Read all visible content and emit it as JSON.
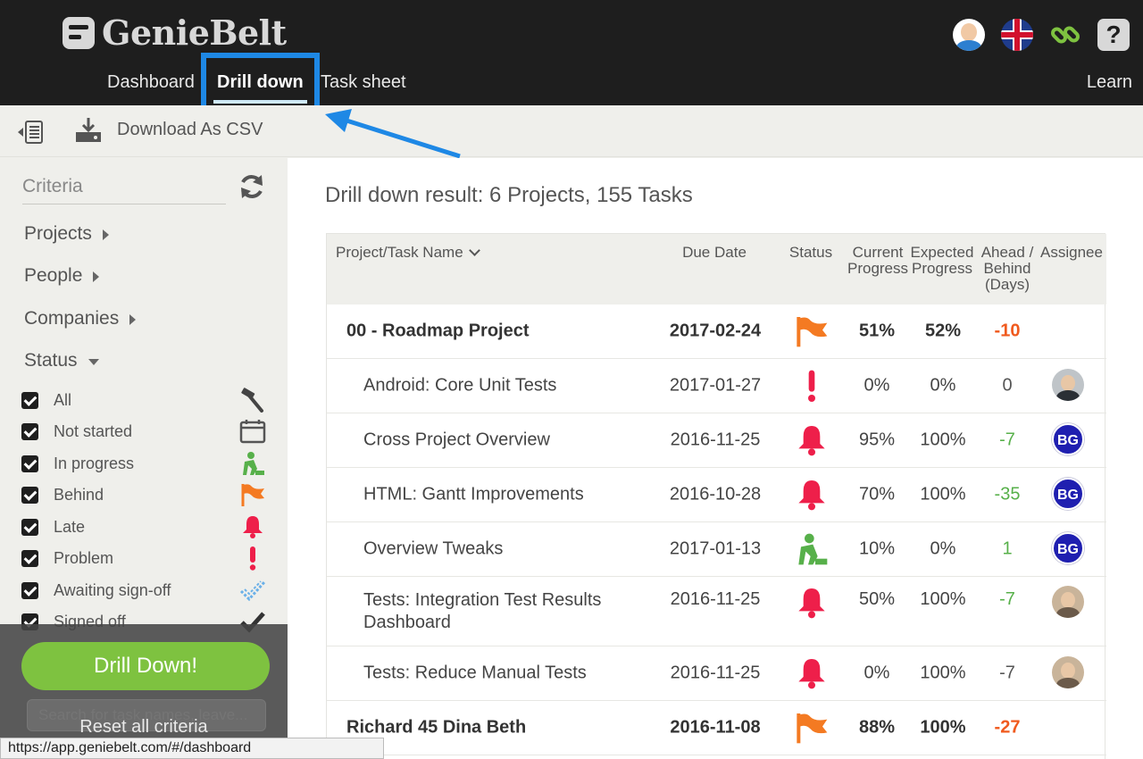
{
  "app": {
    "logo_text": "GenieBelt",
    "nav": {
      "dashboard": "Dashboard",
      "drill_down": "Drill down",
      "task_sheet": "Task sheet",
      "learn": "Learn"
    },
    "icons": [
      "user-avatar-icon",
      "uk-flag-icon",
      "link-icon",
      "help-icon"
    ],
    "accent_color": "#1e88e5",
    "action_color": "#7ec240"
  },
  "toolbar": {
    "download_label": "Download As CSV"
  },
  "sidebar": {
    "criteria_placeholder": "Criteria",
    "filters": {
      "projects": "Projects",
      "people": "People",
      "companies": "Companies",
      "status": "Status"
    },
    "statuses": [
      {
        "label": "All",
        "icon": "hammer-icon",
        "checked": true
      },
      {
        "label": "Not started",
        "icon": "calendar-icon",
        "checked": true
      },
      {
        "label": "In progress",
        "icon": "worker-icon",
        "checked": true
      },
      {
        "label": "Behind",
        "icon": "flag-icon",
        "checked": true
      },
      {
        "label": "Late",
        "icon": "bell-icon",
        "checked": true
      },
      {
        "label": "Problem",
        "icon": "exclamation-icon",
        "checked": true
      },
      {
        "label": "Awaiting sign-off",
        "icon": "dashed-check-icon",
        "checked": true
      },
      {
        "label": "Signed off",
        "icon": "check-icon",
        "checked": true
      }
    ],
    "drill_button": "Drill Down!",
    "search_placeholder": "Search for task names, leave...",
    "reset_label": "Reset all criteria"
  },
  "browser": {
    "status_url": "https://app.geniebelt.com/#/dashboard"
  },
  "main": {
    "result_title": "Drill down result: 6 Projects, 155 Tasks",
    "columns": {
      "name": "Project/Task Name",
      "due": "Due Date",
      "status": "Status",
      "current_1": "Current",
      "current_2": "Progress",
      "expected_1": "Expected",
      "expected_2": "Progress",
      "ahead_1": "Ahead /",
      "ahead_2": "Behind",
      "ahead_3": "(Days)",
      "assignee": "Assignee"
    },
    "rows": [
      {
        "type": "parent",
        "name": "00 - Roadmap Project",
        "due": "2017-02-24",
        "status": "flag-icon",
        "current": "51%",
        "expected": "52%",
        "ahead": "-10",
        "assignee": ""
      },
      {
        "type": "child",
        "name": "Android: Core Unit Tests",
        "due": "2017-01-27",
        "status": "exclamation-icon",
        "current": "0%",
        "expected": "0%",
        "ahead": "0",
        "assignee": "photo"
      },
      {
        "type": "child",
        "name": "Cross Project Overview",
        "due": "2016-11-25",
        "status": "bell-icon",
        "current": "95%",
        "expected": "100%",
        "ahead": "-7",
        "assignee": "BG"
      },
      {
        "type": "child",
        "name": "HTML: Gantt Improvements",
        "due": "2016-10-28",
        "status": "bell-icon",
        "current": "70%",
        "expected": "100%",
        "ahead": "-35",
        "assignee": "BG"
      },
      {
        "type": "child",
        "name": "Overview Tweaks",
        "due": "2017-01-13",
        "status": "worker-icon",
        "current": "10%",
        "expected": "0%",
        "ahead": "1",
        "assignee": "BG"
      },
      {
        "type": "child",
        "name_1": "Tests: Integration Test Results",
        "name_2": "Dashboard",
        "due": "2016-11-25",
        "status": "bell-icon",
        "current": "50%",
        "expected": "100%",
        "ahead": "-7",
        "assignee": "photo"
      },
      {
        "type": "child",
        "name": "Tests: Reduce Manual Tests",
        "due": "2016-11-25",
        "status": "bell-icon",
        "current": "0%",
        "expected": "100%",
        "ahead": "-7",
        "assignee": "photo"
      },
      {
        "type": "parent",
        "name": "Richard 45 Dina Beth",
        "due": "2016-11-08",
        "status": "flag-icon",
        "current": "88%",
        "expected": "100%",
        "ahead": "-27",
        "assignee": ""
      }
    ]
  }
}
